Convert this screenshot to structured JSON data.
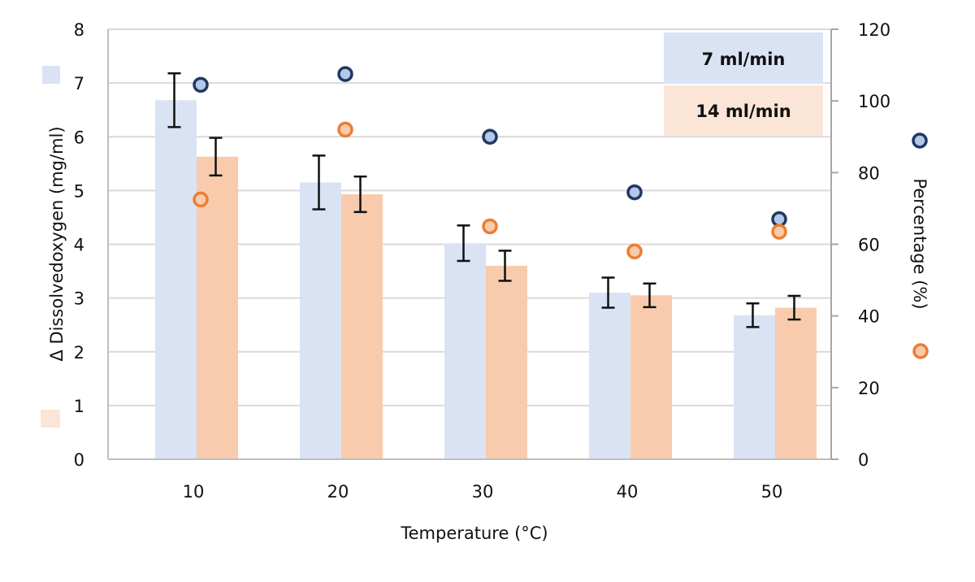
{
  "chart_data": {
    "type": "bar",
    "title": "",
    "xlabel": "Temperature (°C)",
    "ylabel": "Δ Dissolvedoxygen (mg/ml)",
    "y2label": "Percentage (%)",
    "categories": [
      "10",
      "20",
      "30",
      "40",
      "50"
    ],
    "ylim": [
      0,
      8
    ],
    "yticks": [
      "0",
      "1",
      "2",
      "3",
      "4",
      "5",
      "6",
      "7",
      "8"
    ],
    "y2lim": [
      0,
      120
    ],
    "y2ticks": [
      "0",
      "20",
      "40",
      "60",
      "80",
      "100",
      "120"
    ],
    "grid": true,
    "legend_position": "top-right",
    "series": [
      {
        "name": "7 ml/min",
        "type": "bar",
        "axis": "left",
        "color": "#dae3f3",
        "values": [
          6.68,
          5.15,
          4.02,
          3.1,
          2.68
        ],
        "error": [
          0.5,
          0.5,
          0.33,
          0.28,
          0.22
        ]
      },
      {
        "name": "14 ml/min",
        "type": "bar",
        "axis": "left",
        "color": "#f8cbad",
        "values": [
          5.63,
          4.93,
          3.6,
          3.05,
          2.82
        ],
        "error": [
          0.35,
          0.33,
          0.28,
          0.22,
          0.22
        ]
      },
      {
        "name": "Percentage 7 ml/min",
        "type": "scatter",
        "axis": "right",
        "color": "#1f3864",
        "fill": "#b4c7e7",
        "values": [
          104.5,
          107.5,
          90,
          74.5,
          67
        ]
      },
      {
        "name": "Percentage 14 ml/min",
        "type": "scatter",
        "axis": "right",
        "color": "#ed7d31",
        "fill": "#f8cbad",
        "values": [
          72.5,
          92,
          65,
          58,
          63.5
        ]
      }
    ],
    "legend": [
      {
        "label": "7 ml/min",
        "color": "#dae3f3"
      },
      {
        "label": "14 ml/min",
        "color": "#fbe5d6"
      }
    ]
  }
}
